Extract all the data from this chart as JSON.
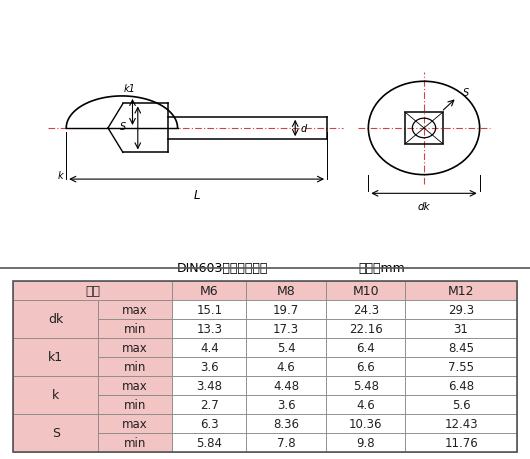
{
  "title": "DIN603大头方颈螺栓",
  "unit": "单位：mm",
  "header_row": [
    "规格",
    "",
    "M6",
    "M8",
    "M10",
    "M12"
  ],
  "rows": [
    [
      "dk",
      "max",
      "15.1",
      "19.7",
      "24.3",
      "29.3"
    ],
    [
      "dk",
      "min",
      "13.3",
      "17.3",
      "22.16",
      "31"
    ],
    [
      "k1",
      "max",
      "4.4",
      "5.4",
      "6.4",
      "8.45"
    ],
    [
      "k1",
      "min",
      "3.6",
      "4.6",
      "6.6",
      "7.55"
    ],
    [
      "k",
      "max",
      "3.48",
      "4.48",
      "5.48",
      "6.48"
    ],
    [
      "k",
      "min",
      "2.7",
      "3.6",
      "4.6",
      "5.6"
    ],
    [
      "S",
      "max",
      "6.3",
      "8.36",
      "10.36",
      "12.43"
    ],
    [
      "S",
      "min",
      "5.84",
      "7.8",
      "9.8",
      "11.76"
    ]
  ],
  "bg_color_header": "#f2c4c4",
  "bg_color_white": "#ffffff",
  "border_color": "#888888",
  "text_color": "#222222"
}
